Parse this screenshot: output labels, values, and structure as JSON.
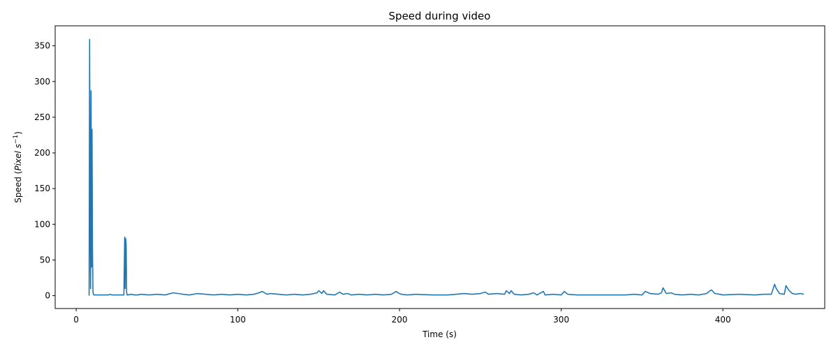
{
  "chart_data": {
    "type": "line",
    "title": "Speed during video",
    "xlabel": "Time (s)",
    "ylabel_prefix": "Speed (",
    "ylabel_unit": "Pixel s",
    "ylabel_exponent": "−1",
    "ylabel_suffix": ")",
    "xlim": [
      -13,
      463
    ],
    "ylim": [
      -18,
      378
    ],
    "xticks": [
      0,
      100,
      200,
      300,
      400
    ],
    "yticks": [
      0,
      50,
      100,
      150,
      200,
      250,
      300,
      350
    ],
    "grid": false,
    "legend": "none",
    "series": [
      {
        "color": "#1f77b4",
        "x": [
          8.0,
          8.3,
          8.6,
          8.9,
          9.2,
          9.5,
          9.8,
          10.1,
          10.4,
          10.7,
          11.0,
          11.5,
          12,
          14,
          16,
          18,
          20,
          21,
          22,
          24,
          26,
          28,
          29.5,
          30.0,
          30.3,
          30.6,
          30.9,
          31.2,
          31.5,
          32,
          34,
          36,
          38,
          40,
          45,
          50,
          55,
          60,
          63,
          66,
          70,
          75,
          80,
          85,
          90,
          95,
          100,
          105,
          110,
          113,
          115,
          118,
          120,
          125,
          130,
          135,
          140,
          145,
          149,
          150,
          152,
          153,
          155,
          160,
          163,
          165,
          168,
          170,
          175,
          180,
          185,
          190,
          195,
          198,
          199,
          201,
          205,
          210,
          220,
          230,
          235,
          240,
          245,
          250,
          253,
          255,
          260,
          265,
          266,
          268,
          269,
          271,
          275,
          280,
          283,
          285,
          289,
          290,
          295,
          300,
          302,
          304,
          310,
          320,
          330,
          340,
          345,
          350,
          352,
          355,
          360,
          362,
          363,
          365,
          368,
          370,
          375,
          380,
          385,
          390,
          392,
          393,
          395,
          398,
          400,
          410,
          420,
          425,
          430,
          432,
          433,
          435,
          438,
          439,
          441,
          443,
          445,
          448,
          450
        ],
        "y": [
          0,
          359,
          120,
          10,
          287,
          40,
          233,
          60,
          5,
          2,
          1,
          1,
          1,
          1,
          1,
          1,
          1,
          2,
          1,
          1,
          1,
          1,
          1,
          82,
          10,
          80,
          72,
          5,
          1,
          1,
          2,
          1,
          1,
          2,
          1,
          2,
          1,
          4,
          3,
          2,
          1,
          3,
          2,
          1,
          2,
          1,
          2,
          1,
          2,
          4,
          6,
          2,
          3,
          2,
          1,
          2,
          1,
          2,
          4,
          7,
          3,
          7,
          2,
          1,
          5,
          2,
          3,
          1,
          2,
          1,
          2,
          1,
          2,
          6,
          4,
          2,
          1,
          2,
          1,
          1,
          2,
          3,
          2,
          3,
          5,
          2,
          3,
          2,
          7,
          3,
          7,
          2,
          1,
          2,
          4,
          1,
          6,
          1,
          2,
          1,
          6,
          2,
          1,
          1,
          1,
          1,
          2,
          1,
          6,
          3,
          2,
          4,
          11,
          3,
          4,
          2,
          1,
          2,
          1,
          3,
          7,
          8,
          3,
          2,
          1,
          2,
          1,
          2,
          2,
          16,
          10,
          3,
          2,
          14,
          7,
          3,
          2,
          3,
          2
        ]
      }
    ]
  }
}
